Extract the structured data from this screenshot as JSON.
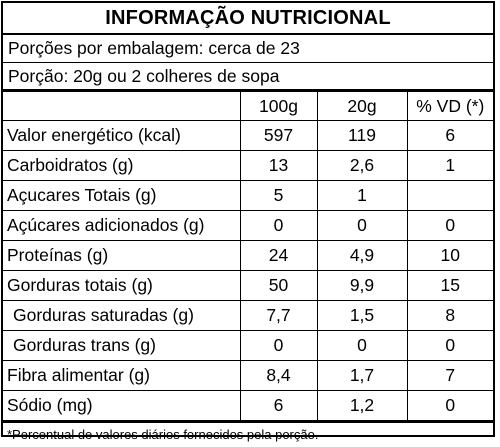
{
  "title": "INFORMAÇÃO NUTRICIONAL",
  "servings_per_package": "Porções por embalagem: cerca de 23",
  "serving_size": "Porção: 20g ou 2 colheres de sopa",
  "columns": [
    "",
    "100g",
    "20g",
    "% VD (*)"
  ],
  "rows": [
    {
      "label": "Valor energético (kcal)",
      "per100": "597",
      "per20": "119",
      "vd": "6"
    },
    {
      "label": "Carboidratos (g)",
      "per100": "13",
      "per20": "2,6",
      "vd": "1"
    },
    {
      "label": "Açucares Totais (g)",
      "per100": "5",
      "per20": "1",
      "vd": ""
    },
    {
      "label": "Açúcares adicionados (g)",
      "per100": "0",
      "per20": "0",
      "vd": "0"
    },
    {
      "label": "Proteínas (g)",
      "per100": "24",
      "per20": "4,9",
      "vd": "10"
    },
    {
      "label": "Gorduras totais (g)",
      "per100": "50",
      "per20": "9,9",
      "vd": "15"
    },
    {
      "label": "Gorduras saturadas (g)",
      "per100": "7,7",
      "per20": "1,5",
      "vd": "8"
    },
    {
      "label": "Gorduras trans (g)",
      "per100": "0",
      "per20": "0",
      "vd": "0"
    },
    {
      "label": "Fibra alimentar (g)",
      "per100": "8,4",
      "per20": "1,7",
      "vd": "7"
    },
    {
      "label": "Sódio (mg)",
      "per100": "6",
      "per20": "1,2",
      "vd": "0"
    }
  ],
  "footnote": "*Percentual de valores diários fornecidos pela porção."
}
